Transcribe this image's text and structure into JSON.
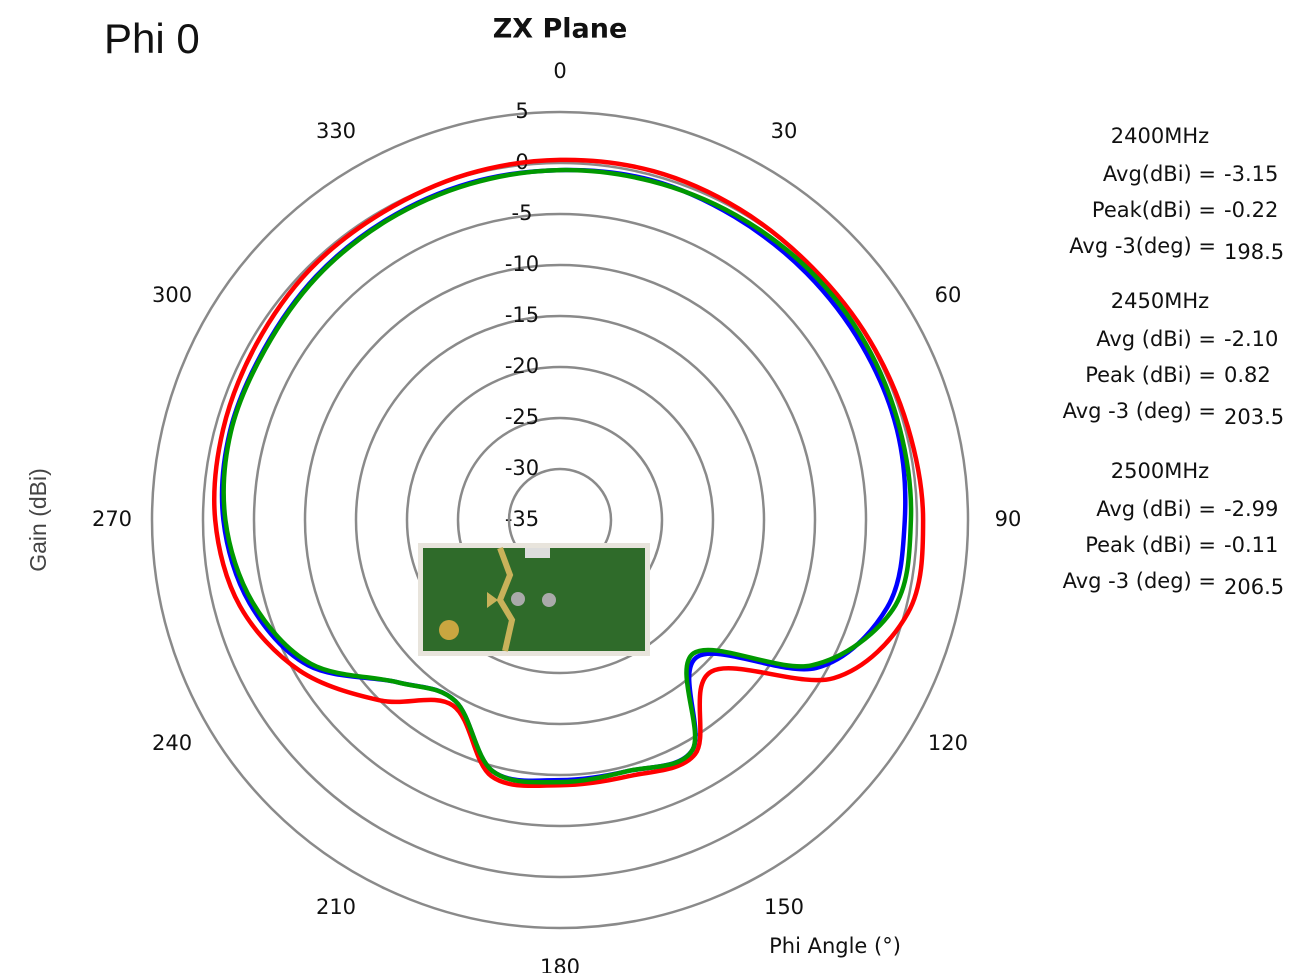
{
  "chart_data": {
    "type": "polar",
    "plane_label": "Phi 0",
    "title": "ZX Plane",
    "ylabel": "Gain  (dBi)",
    "xlabel": "Phi Angle (°)",
    "theta": [
      0,
      15,
      30,
      45,
      60,
      75,
      90,
      105,
      120,
      135,
      150,
      165,
      180,
      195,
      210,
      225,
      240,
      255,
      270,
      285,
      300,
      315,
      330,
      345
    ],
    "thetaticks": [
      0,
      30,
      60,
      90,
      120,
      150,
      180,
      210,
      240,
      270,
      300,
      330
    ],
    "rlim": [
      -35,
      5
    ],
    "rticks": [
      -35,
      -30,
      -25,
      -20,
      -15,
      -10,
      -5,
      0,
      5
    ],
    "grid": true,
    "series": [
      {
        "name": "2400MHz",
        "color": "#0000ff",
        "values": [
          -0.7,
          -0.5,
          -0.7,
          -0.8,
          -0.8,
          -0.8,
          -1.2,
          -1.8,
          -6,
          -16,
          -9,
          -9.5,
          -9.5,
          -9.5,
          -14.5,
          -12.5,
          -6.5,
          -3.5,
          -2,
          -1.5,
          -1.5,
          -1.2,
          -1,
          -0.8
        ],
        "stats": [
          {
            "label": "Avg(dBi) =",
            "value": "-3.15"
          },
          {
            "label": "Peak(dBi) =",
            "value": "-0.22"
          },
          {
            "label": "Avg -3(deg) =",
            "value": "198.5"
          }
        ]
      },
      {
        "name": "2450MHz",
        "color": "#ff0000",
        "values": [
          0.3,
          0.4,
          0.2,
          0,
          0.1,
          0.3,
          0.6,
          0.3,
          -4,
          -14,
          -8.5,
          -9,
          -9,
          -9,
          -14,
          -10,
          -5.5,
          -2.5,
          -1.2,
          -0.8,
          -0.6,
          -0.3,
          -0.2,
          0.1
        ],
        "stats": [
          {
            "label": "Avg (dBi) =",
            "value": "-2.10"
          },
          {
            "label": "Peak (dBi) =",
            "value": "0.82"
          },
          {
            "label": "Avg -3 (deg) =",
            "value": "203.5"
          }
        ]
      },
      {
        "name": "2500MHz",
        "color": "#009900",
        "values": [
          -0.7,
          -0.6,
          -0.5,
          -0.4,
          -0.4,
          -0.5,
          -0.6,
          -1.2,
          -6.5,
          -16.5,
          -9,
          -9.5,
          -9.3,
          -9.5,
          -14.5,
          -12.5,
          -6.8,
          -3.8,
          -2.2,
          -1.6,
          -1.6,
          -1.3,
          -1.1,
          -0.9
        ],
        "stats": [
          {
            "label": "Avg (dBi) =",
            "value": "-2.99"
          },
          {
            "label": "Peak (dBi) =",
            "value": "-0.11"
          },
          {
            "label": "Avg -3 (deg) =",
            "value": "206.5"
          }
        ]
      }
    ]
  }
}
